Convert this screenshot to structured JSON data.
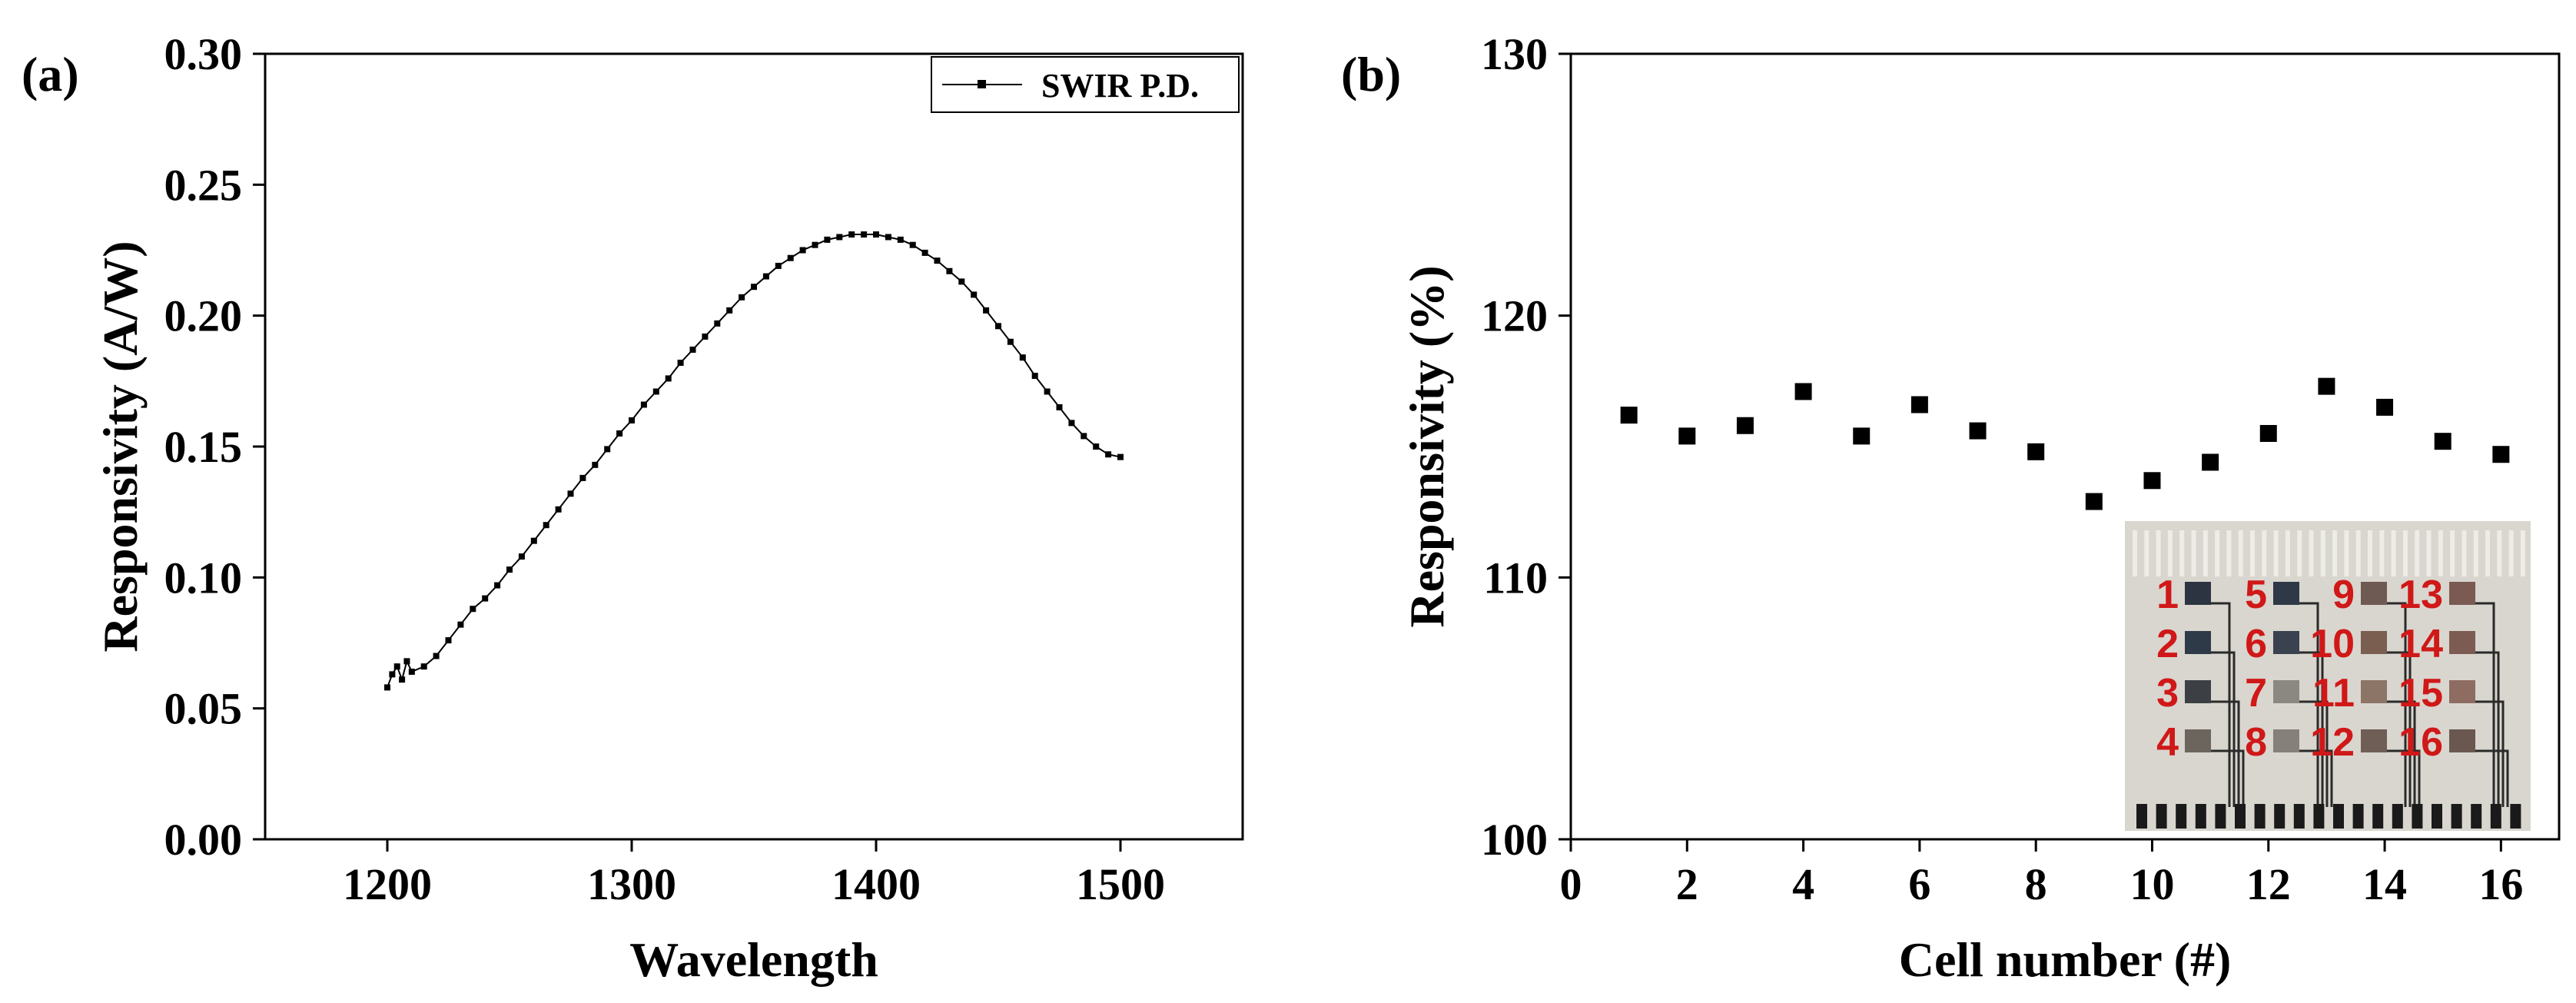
{
  "chart_data": [
    {
      "type": "scatter",
      "panel_label": "(a)",
      "xlabel": "Wavelength",
      "ylabel": "Responsivity (A/W)",
      "xlim": [
        1150,
        1550
      ],
      "ylim": [
        0.0,
        0.3
      ],
      "x_ticks": [
        1200,
        1300,
        1400,
        1500
      ],
      "x_tick_labels": [
        "1200",
        "1300",
        "1400",
        "1500"
      ],
      "y_ticks": [
        0.0,
        0.05,
        0.1,
        0.15,
        0.2,
        0.25,
        0.3
      ],
      "y_tick_labels": [
        "0.00",
        "0.05",
        "0.10",
        "0.15",
        "0.20",
        "0.25",
        "0.30"
      ],
      "grid": false,
      "legend": {
        "position": "top-right",
        "entries": [
          "SWIR P.D."
        ]
      },
      "series": [
        {
          "name": "SWIR P.D.",
          "x": [
            1200,
            1202,
            1204,
            1206,
            1208,
            1210,
            1215,
            1220,
            1225,
            1230,
            1235,
            1240,
            1245,
            1250,
            1255,
            1260,
            1265,
            1270,
            1275,
            1280,
            1285,
            1290,
            1295,
            1300,
            1305,
            1310,
            1315,
            1320,
            1325,
            1330,
            1335,
            1340,
            1345,
            1350,
            1355,
            1360,
            1365,
            1370,
            1375,
            1380,
            1385,
            1390,
            1395,
            1400,
            1405,
            1410,
            1415,
            1420,
            1425,
            1430,
            1435,
            1440,
            1445,
            1450,
            1455,
            1460,
            1465,
            1470,
            1475,
            1480,
            1485,
            1490,
            1495,
            1500
          ],
          "y": [
            0.058,
            0.063,
            0.066,
            0.061,
            0.068,
            0.064,
            0.066,
            0.07,
            0.076,
            0.082,
            0.088,
            0.092,
            0.097,
            0.103,
            0.108,
            0.114,
            0.12,
            0.126,
            0.132,
            0.138,
            0.143,
            0.149,
            0.155,
            0.16,
            0.166,
            0.171,
            0.176,
            0.182,
            0.187,
            0.192,
            0.197,
            0.202,
            0.207,
            0.211,
            0.215,
            0.219,
            0.222,
            0.225,
            0.227,
            0.229,
            0.23,
            0.231,
            0.231,
            0.231,
            0.23,
            0.229,
            0.227,
            0.224,
            0.221,
            0.217,
            0.213,
            0.208,
            0.202,
            0.196,
            0.19,
            0.184,
            0.177,
            0.171,
            0.165,
            0.159,
            0.154,
            0.15,
            0.147,
            0.146
          ]
        }
      ]
    },
    {
      "type": "scatter",
      "panel_label": "(b)",
      "xlabel": "Cell number (#)",
      "ylabel": "Responsivity (%)",
      "xlim": [
        0,
        17
      ],
      "ylim": [
        100,
        130
      ],
      "x_ticks": [
        0,
        2,
        4,
        6,
        8,
        10,
        12,
        14,
        16
      ],
      "x_tick_labels": [
        "0",
        "2",
        "4",
        "6",
        "8",
        "10",
        "12",
        "14",
        "16"
      ],
      "y_ticks": [
        100,
        110,
        120,
        130
      ],
      "y_tick_labels": [
        "100",
        "110",
        "120",
        "130"
      ],
      "grid": false,
      "series": [
        {
          "name": "Responsivity",
          "x": [
            1,
            2,
            3,
            4,
            5,
            6,
            7,
            8,
            9,
            10,
            11,
            12,
            13,
            14,
            15,
            16
          ],
          "y": [
            116.2,
            115.4,
            115.8,
            117.1,
            115.4,
            116.6,
            115.6,
            114.8,
            112.9,
            113.7,
            114.4,
            115.5,
            117.3,
            116.5,
            115.2,
            114.7
          ]
        }
      ],
      "inset": {
        "description_labels": [
          "1",
          "2",
          "3",
          "4",
          "5",
          "6",
          "7",
          "8",
          "9",
          "10",
          "11",
          "12",
          "13",
          "14",
          "15",
          "16"
        ],
        "pad_colors": [
          "#2b3440",
          "#2f3a48",
          "#3c3f44",
          "#6b655e",
          "#2e3846",
          "#3a4250",
          "#8a8880",
          "#85807a",
          "#6e5a52",
          "#7a5e50",
          "#8c7466",
          "#6e5e56",
          "#7a5a52",
          "#7c5c52",
          "#8e6c62",
          "#6a5850"
        ]
      }
    }
  ]
}
